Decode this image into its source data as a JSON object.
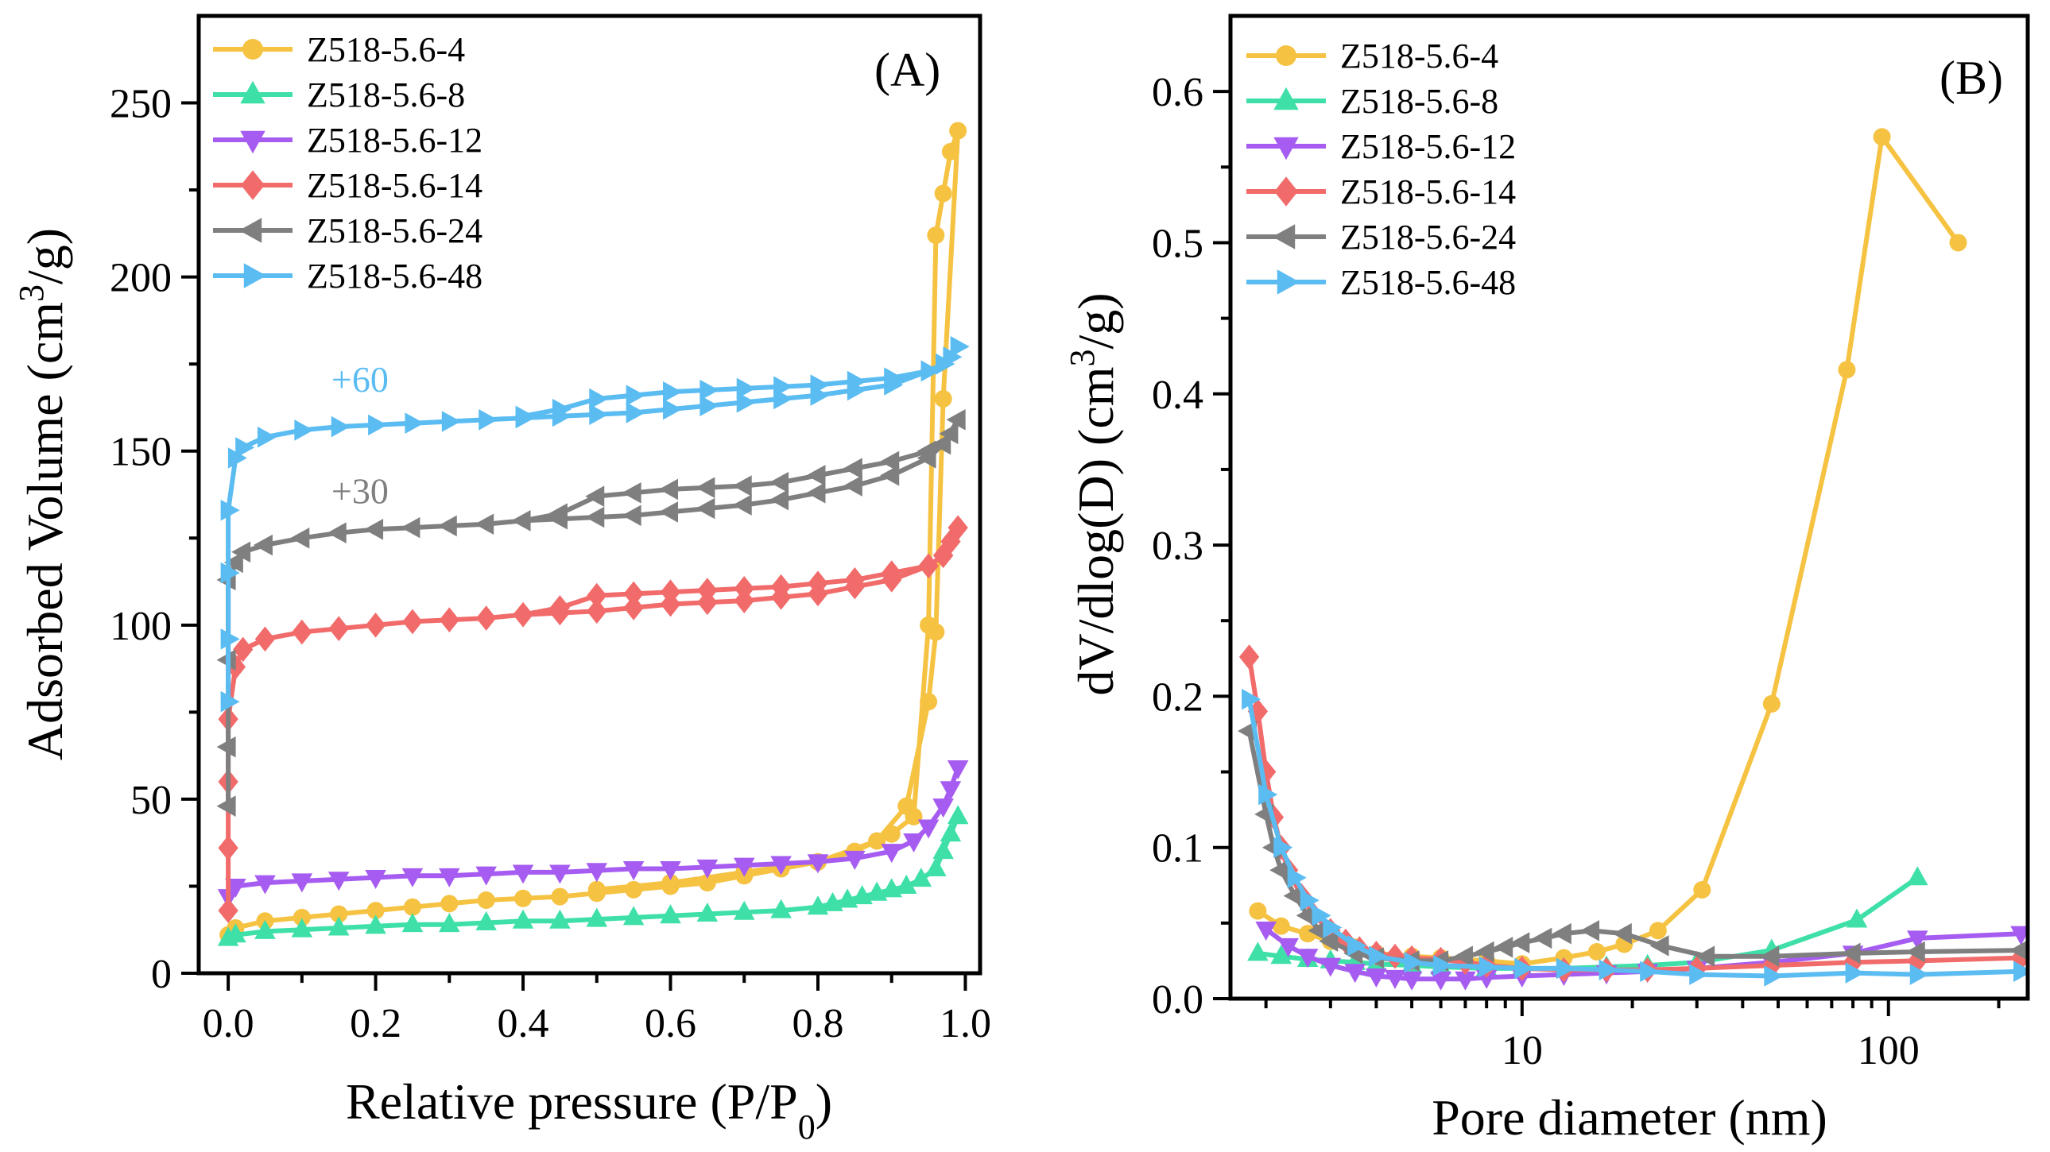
{
  "chart_data": [
    {
      "type": "line",
      "panel_label": "(A)",
      "xlabel": "Relative pressure (P/P",
      "xlabel_sub": "0",
      "xlabel_end": ")",
      "ylabel": "Adsorbed Volume (cm",
      "ylabel_sup": "3",
      "ylabel_end": "/g)",
      "xlim": [
        -0.04,
        1.02
      ],
      "ylim": [
        0,
        275
      ],
      "xticks": [
        0.0,
        0.2,
        0.4,
        0.6,
        0.8,
        1.0
      ],
      "xtick_labels": [
        "0.0",
        "0.2",
        "0.4",
        "0.6",
        "0.8",
        "1.0"
      ],
      "yticks": [
        0,
        50,
        100,
        150,
        200,
        250
      ],
      "ytick_labels": [
        "0",
        "50",
        "100",
        "150",
        "200",
        "250"
      ],
      "legend_position": "top-left",
      "annotations": [
        {
          "text": "+60",
          "x": 0.14,
          "y": 167,
          "color": "#5bbcf2"
        },
        {
          "text": "+30",
          "x": 0.14,
          "y": 135,
          "color": "#7f7f7f"
        }
      ],
      "series": [
        {
          "name": "Z518-5.6-4",
          "color": "#f5c242",
          "marker": "circle",
          "x": [
            0.0,
            0.01,
            0.05,
            0.1,
            0.15,
            0.2,
            0.25,
            0.3,
            0.35,
            0.4,
            0.45,
            0.5,
            0.55,
            0.6,
            0.65,
            0.7,
            0.75,
            0.8,
            0.85,
            0.9,
            0.93,
            0.95,
            0.96,
            0.97,
            0.98,
            0.99,
            0.97,
            0.96,
            0.95,
            0.92,
            0.88,
            0.8,
            0.7,
            0.6,
            0.5
          ],
          "y": [
            11,
            13,
            15,
            16,
            17,
            18,
            19,
            20,
            21,
            21.5,
            22,
            23,
            24,
            25,
            26,
            28,
            30,
            32,
            35,
            40,
            45,
            100,
            212,
            224,
            236,
            242,
            165,
            98,
            78,
            48,
            38,
            32,
            29,
            26,
            24
          ]
        },
        {
          "name": "Z518-5.6-8",
          "color": "#3ee0a8",
          "marker": "triangle-up",
          "x": [
            0.0,
            0.01,
            0.05,
            0.1,
            0.15,
            0.2,
            0.25,
            0.3,
            0.35,
            0.4,
            0.45,
            0.5,
            0.55,
            0.6,
            0.65,
            0.7,
            0.75,
            0.8,
            0.82,
            0.84,
            0.86,
            0.88,
            0.9,
            0.92,
            0.94,
            0.96,
            0.97,
            0.98,
            0.99
          ],
          "y": [
            10,
            11,
            12,
            12.5,
            13,
            13.5,
            14,
            14,
            14.5,
            15,
            15,
            15.5,
            16,
            16.5,
            17,
            17.5,
            18,
            19,
            20,
            21,
            22,
            23,
            24,
            25,
            27,
            30,
            35,
            40,
            45
          ]
        },
        {
          "name": "Z518-5.6-12",
          "color": "#a65cf0",
          "marker": "triangle-down",
          "x": [
            0.0,
            0.01,
            0.05,
            0.1,
            0.15,
            0.2,
            0.25,
            0.3,
            0.35,
            0.4,
            0.45,
            0.5,
            0.55,
            0.6,
            0.65,
            0.7,
            0.75,
            0.8,
            0.85,
            0.9,
            0.93,
            0.95,
            0.97,
            0.98,
            0.99
          ],
          "y": [
            22,
            25,
            26,
            26.5,
            27,
            27.5,
            28,
            28,
            28.5,
            29,
            29,
            29.5,
            30,
            30,
            30.5,
            31,
            31.5,
            32,
            33,
            35,
            38,
            42,
            48,
            53,
            59
          ]
        },
        {
          "name": "Z518-5.6-14",
          "color": "#f26b6b",
          "marker": "diamond",
          "x": [
            0.0,
            0.0,
            0.0,
            0.0,
            0.01,
            0.02,
            0.05,
            0.1,
            0.15,
            0.2,
            0.25,
            0.3,
            0.35,
            0.4,
            0.45,
            0.5,
            0.55,
            0.6,
            0.65,
            0.7,
            0.75,
            0.8,
            0.85,
            0.9,
            0.95,
            0.97,
            0.98,
            0.99,
            0.97,
            0.95,
            0.9,
            0.85,
            0.8,
            0.75,
            0.7,
            0.65,
            0.6,
            0.55,
            0.5,
            0.45,
            0.4
          ],
          "y": [
            18,
            36,
            55,
            73,
            88,
            93,
            96,
            98,
            99,
            100,
            101,
            101.5,
            102,
            103,
            103.5,
            104,
            105,
            106,
            106.5,
            107,
            108,
            109,
            111,
            113,
            117,
            120,
            124,
            128,
            120,
            117,
            115,
            113,
            112,
            111,
            110.5,
            110,
            109.5,
            109,
            108.5,
            105,
            103
          ]
        },
        {
          "name": "Z518-5.6-24",
          "color": "#7f7f7f",
          "marker": "triangle-left",
          "x": [
            0.0,
            0.0,
            0.0,
            0.0,
            0.01,
            0.02,
            0.05,
            0.1,
            0.15,
            0.2,
            0.25,
            0.3,
            0.35,
            0.4,
            0.45,
            0.5,
            0.55,
            0.6,
            0.65,
            0.7,
            0.75,
            0.8,
            0.85,
            0.9,
            0.95,
            0.97,
            0.98,
            0.99,
            0.97,
            0.95,
            0.9,
            0.85,
            0.8,
            0.75,
            0.7,
            0.65,
            0.6,
            0.55,
            0.5,
            0.45,
            0.4
          ],
          "y": [
            48,
            65,
            90,
            113,
            118,
            121,
            123,
            125,
            126.5,
            127.5,
            128,
            128.5,
            129,
            130,
            130.5,
            131,
            131.5,
            132.5,
            133.5,
            134.5,
            136,
            138,
            140,
            143,
            148,
            152,
            155,
            159,
            152,
            150,
            147,
            145,
            143,
            141,
            140,
            139.5,
            139,
            138,
            137,
            132,
            130
          ]
        },
        {
          "name": "Z518-5.6-48",
          "color": "#5bbcf2",
          "marker": "triangle-right",
          "x": [
            0.0,
            0.0,
            0.0,
            0.0,
            0.01,
            0.02,
            0.05,
            0.1,
            0.15,
            0.2,
            0.25,
            0.3,
            0.35,
            0.4,
            0.45,
            0.5,
            0.55,
            0.6,
            0.65,
            0.7,
            0.75,
            0.8,
            0.85,
            0.9,
            0.95,
            0.97,
            0.98,
            0.99,
            0.97,
            0.95,
            0.9,
            0.85,
            0.8,
            0.75,
            0.7,
            0.65,
            0.6,
            0.55,
            0.5,
            0.45,
            0.4
          ],
          "y": [
            78,
            96,
            115,
            133,
            148,
            151,
            154,
            156,
            157,
            157.5,
            158,
            158.5,
            159,
            159.5,
            160,
            160.5,
            161,
            162,
            163,
            164,
            165,
            166,
            167.5,
            169,
            173,
            175,
            177,
            180,
            175,
            173,
            171,
            170,
            169,
            168.5,
            168,
            167.5,
            167,
            166,
            165,
            162,
            160
          ]
        }
      ]
    },
    {
      "type": "line",
      "panel_label": "(B)",
      "xscale": "log",
      "xlabel": "Pore diameter (nm)",
      "ylabel": "dV/dlog(D) (cm",
      "ylabel_sup": "3",
      "ylabel_end": "/g)",
      "xlim": [
        1.6,
        240
      ],
      "ylim": [
        0,
        0.65
      ],
      "xticks": [
        10,
        100
      ],
      "xtick_labels": [
        "10",
        "100"
      ],
      "yticks": [
        0.0,
        0.1,
        0.2,
        0.3,
        0.4,
        0.5,
        0.6
      ],
      "ytick_labels": [
        "0.0",
        "0.1",
        "0.2",
        "0.3",
        "0.4",
        "0.5",
        "0.6"
      ],
      "legend_position": "top-left",
      "series": [
        {
          "name": "Z518-5.6-4",
          "color": "#f5c242",
          "marker": "circle",
          "x": [
            1.9,
            2.2,
            2.6,
            3.0,
            3.5,
            4.0,
            5.0,
            6.0,
            8.0,
            10.0,
            13.0,
            16.0,
            19.0,
            23.5,
            31.0,
            48.0,
            77.0,
            96.0,
            155.0
          ],
          "y": [
            0.058,
            0.048,
            0.043,
            0.038,
            0.034,
            0.03,
            0.028,
            0.027,
            0.025,
            0.023,
            0.027,
            0.031,
            0.036,
            0.045,
            0.072,
            0.195,
            0.416,
            0.57,
            0.5
          ]
        },
        {
          "name": "Z518-5.6-8",
          "color": "#3ee0a8",
          "marker": "triangle-up",
          "x": [
            1.9,
            2.2,
            2.6,
            3.0,
            3.5,
            4.0,
            5.0,
            6.0,
            8.0,
            10.0,
            13.0,
            17.0,
            22.0,
            30.0,
            48.0,
            82.0,
            120.0
          ],
          "y": [
            0.03,
            0.028,
            0.026,
            0.025,
            0.024,
            0.023,
            0.022,
            0.021,
            0.02,
            0.02,
            0.02,
            0.021,
            0.022,
            0.024,
            0.032,
            0.052,
            0.08
          ]
        },
        {
          "name": "Z518-5.6-12",
          "color": "#a65cf0",
          "marker": "triangle-down",
          "x": [
            2.0,
            2.3,
            2.6,
            3.0,
            3.5,
            4.0,
            4.5,
            5.0,
            6.0,
            7.0,
            8.0,
            10.0,
            13.0,
            17.0,
            22.0,
            30.0,
            48.0,
            80.0,
            120.0,
            230.0
          ],
          "y": [
            0.046,
            0.035,
            0.028,
            0.022,
            0.018,
            0.015,
            0.014,
            0.013,
            0.013,
            0.013,
            0.014,
            0.015,
            0.016,
            0.017,
            0.018,
            0.02,
            0.024,
            0.03,
            0.04,
            0.043
          ]
        },
        {
          "name": "Z518-5.6-14",
          "color": "#f26b6b",
          "marker": "diamond",
          "x": [
            1.8,
            1.9,
            2.0,
            2.1,
            2.2,
            2.3,
            2.5,
            2.7,
            3.0,
            3.3,
            3.6,
            4.0,
            4.5,
            5.0,
            6.0,
            7.0,
            8.0,
            10.0,
            13.0,
            17.0,
            22.0,
            30.0,
            48.0,
            80.0,
            120.0,
            230.0
          ],
          "y": [
            0.226,
            0.19,
            0.15,
            0.12,
            0.1,
            0.085,
            0.068,
            0.055,
            0.045,
            0.038,
            0.033,
            0.03,
            0.028,
            0.027,
            0.026,
            0.024,
            0.022,
            0.02,
            0.019,
            0.019,
            0.019,
            0.02,
            0.022,
            0.024,
            0.025,
            0.027
          ]
        },
        {
          "name": "Z518-5.6-24",
          "color": "#7f7f7f",
          "marker": "triangle-left",
          "x": [
            1.8,
            2.0,
            2.1,
            2.2,
            2.4,
            2.6,
            2.8,
            3.0,
            3.5,
            4.0,
            5.0,
            6.0,
            7.0,
            8.0,
            9.0,
            10.0,
            11.5,
            13.0,
            15.5,
            19.0,
            24.0,
            32.0,
            48.0,
            80.0,
            120.0,
            230.0
          ],
          "y": [
            0.177,
            0.122,
            0.1,
            0.085,
            0.068,
            0.055,
            0.045,
            0.038,
            0.03,
            0.027,
            0.025,
            0.025,
            0.028,
            0.031,
            0.034,
            0.037,
            0.04,
            0.043,
            0.045,
            0.043,
            0.035,
            0.028,
            0.028,
            0.03,
            0.031,
            0.032
          ]
        },
        {
          "name": "Z518-5.6-48",
          "color": "#5bbcf2",
          "marker": "triangle-right",
          "x": [
            1.8,
            2.0,
            2.2,
            2.4,
            2.6,
            2.8,
            3.0,
            3.5,
            4.0,
            5.0,
            6.0,
            8.0,
            10.0,
            13.0,
            17.0,
            22.0,
            30.0,
            48.0,
            80.0,
            120.0,
            230.0
          ],
          "y": [
            0.198,
            0.135,
            0.1,
            0.08,
            0.065,
            0.055,
            0.047,
            0.035,
            0.028,
            0.024,
            0.022,
            0.021,
            0.02,
            0.02,
            0.019,
            0.018,
            0.016,
            0.015,
            0.017,
            0.016,
            0.018
          ]
        }
      ]
    }
  ]
}
